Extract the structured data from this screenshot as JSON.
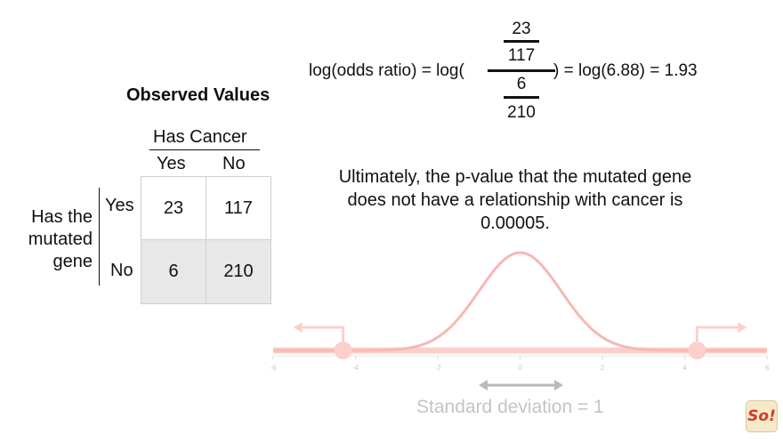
{
  "title": "Observed Values",
  "formula": {
    "lhs": "log(odds ratio) = log(",
    "numerator_top": "23",
    "numerator_bottom": "117",
    "denominator_top": "6",
    "denominator_bottom": "210",
    "rhs": ") = log(6.88) = 1.93"
  },
  "table": {
    "col_group_label": "Has Cancer",
    "col_headers": [
      "Yes",
      "No"
    ],
    "row_group_label": [
      "Has the",
      "mutated",
      "gene"
    ],
    "row_headers": [
      "Yes",
      "No"
    ],
    "cells": [
      [
        "23",
        "117"
      ],
      [
        "6",
        "210"
      ]
    ],
    "shaded_row_color": "#e8e8e8"
  },
  "sentence": "Ultimately, the p-value that the mutated gene does not have a relationship with cancer is 0.00005.",
  "distribution": {
    "type": "normal",
    "mean": 0,
    "sd": 1,
    "axis_ticks": [
      "-6",
      "-4",
      "-2",
      "0",
      "2",
      "4",
      "6"
    ],
    "xlim": [
      -6,
      6
    ],
    "marked_points": [
      -4.3,
      4.3
    ],
    "curve_color": "#f7b8b3",
    "tail_color": "#fbd0cc"
  },
  "sd_label": "Standard deviation = 1",
  "logo_text": "So!"
}
